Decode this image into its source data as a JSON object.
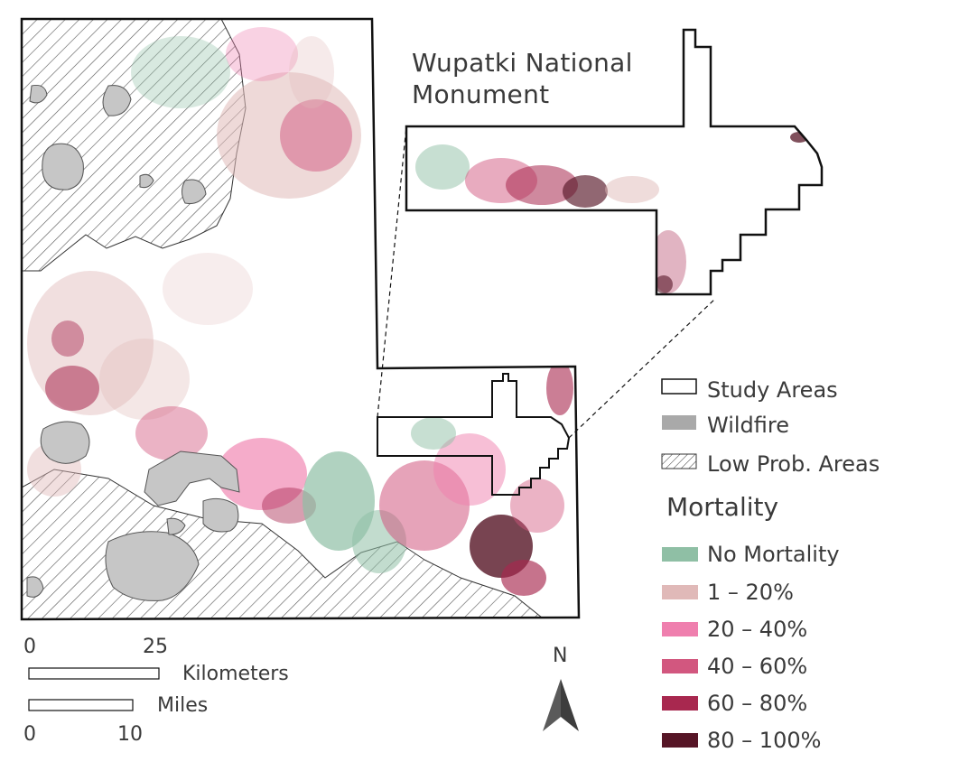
{
  "inset": {
    "title_line1": "Wupatki National",
    "title_line2": "Monument"
  },
  "legend": {
    "items": [
      {
        "label": "Study Areas",
        "icon": "outline-box",
        "color": "#ffffff",
        "border": "#000000"
      },
      {
        "label": "Wildfire",
        "icon": "gray-fill",
        "color": "#a9a9a9",
        "border": "#a9a9a9"
      },
      {
        "label": "Low Prob. Areas",
        "icon": "hatch-fill",
        "color": "#ffffff",
        "border": "#333333"
      }
    ],
    "mortality_title": "Mortality",
    "mortality_classes": [
      {
        "label": "No Mortality",
        "color": "#8fbfa5"
      },
      {
        "label": "1 – 20%",
        "color": "#e0b9b8"
      },
      {
        "label": "20 – 40%",
        "color": "#ef7fae"
      },
      {
        "label": "40 – 60%",
        "color": "#d2577f"
      },
      {
        "label": "60 – 80%",
        "color": "#a8284f"
      },
      {
        "label": "80 – 100%",
        "color": "#561526"
      }
    ]
  },
  "scale_bar": {
    "km_start": "0",
    "km_end": "25",
    "km_label": "Kilometers",
    "mi_label": "Miles",
    "mi_start": "0",
    "mi_end": "10"
  },
  "north_arrow": {
    "label": "N"
  },
  "colors": {
    "outline": "#111111",
    "wildfire": "#c6c6c6",
    "hatch": "#555555"
  }
}
